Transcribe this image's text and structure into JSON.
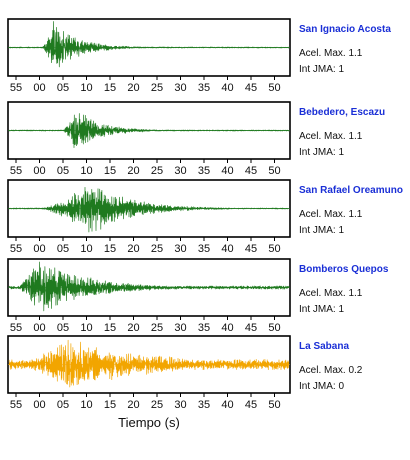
{
  "chart_data": {
    "type": "line",
    "xlabel": "Tiempo (s)",
    "xticks": [
      "55",
      "00",
      "05",
      "10",
      "15",
      "20",
      "25",
      "30",
      "35",
      "40",
      "45",
      "50"
    ],
    "tick_step_s": 5,
    "panels": [
      {
        "station": "San Ignacio Acosta",
        "acel_label": "Acel. Max. 1.1",
        "jma_label": "Int JMA: 1",
        "color": "#1f7a1f",
        "onset_s": 5.5,
        "peak_s": 8.0,
        "amplitude": 0.95,
        "decay_s": 5.0,
        "noise": 0.02
      },
      {
        "station": "Bebedero, Escazu",
        "acel_label": "Acel. Max. 1.1",
        "jma_label": "Int JMA: 1",
        "color": "#1f7a1f",
        "onset_s": 10.0,
        "peak_s": 12.5,
        "amplitude": 0.85,
        "decay_s": 5.0,
        "noise": 0.02
      },
      {
        "station": "San Rafael Oreamuno",
        "acel_label": "Acel. Max. 1.1",
        "jma_label": "Int JMA: 1",
        "color": "#1f7a1f",
        "onset_s": 5.0,
        "peak_s": 16.0,
        "amplitude": 0.95,
        "decay_s": 8.0,
        "noise": 0.02
      },
      {
        "station": "Bomberos Quepos",
        "acel_label": "Acel. Max. 1.1",
        "jma_label": "Int JMA: 1",
        "color": "#1f7a1f",
        "onset_s": 0.0,
        "peak_s": 5.0,
        "amplitude": 1.0,
        "decay_s": 10.0,
        "noise": 0.06
      },
      {
        "station": "La Sabana",
        "acel_label": "Acel. Max. 0.2",
        "jma_label": "Int JMA: 0",
        "color": "#f2a500",
        "onset_s": 0.0,
        "peak_s": 11.0,
        "amplitude": 0.9,
        "decay_s": 18.0,
        "noise": 0.18
      }
    ]
  }
}
